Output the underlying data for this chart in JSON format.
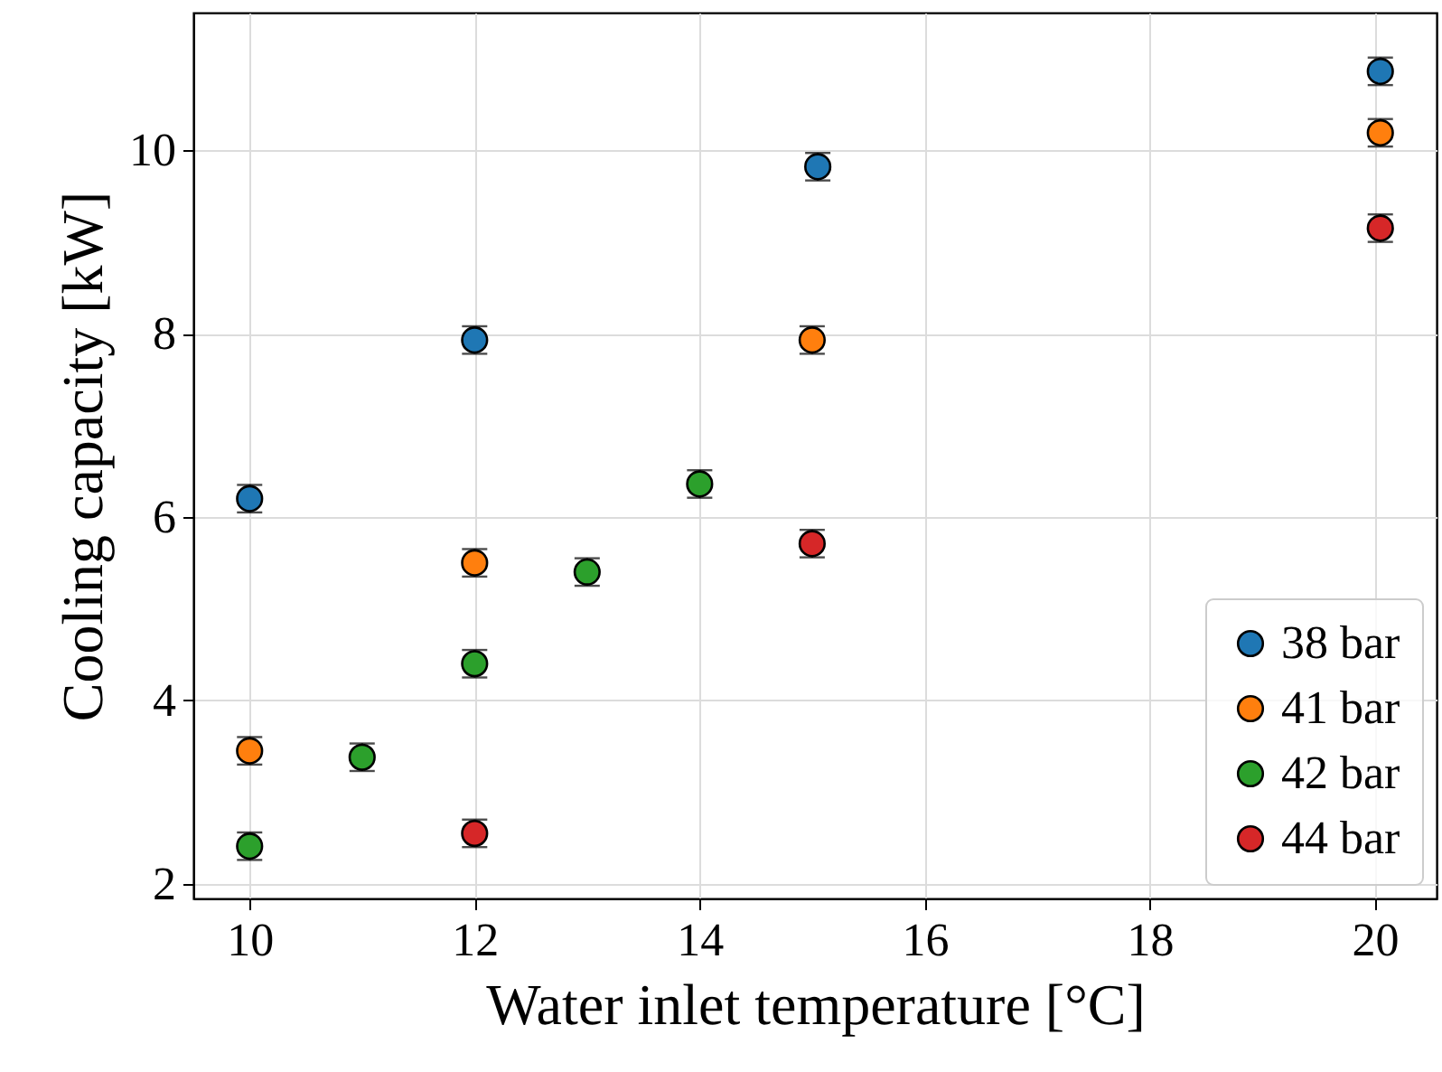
{
  "chart_data": {
    "type": "scatter",
    "xlabel": "Water inlet temperature [°C]",
    "ylabel": "Cooling capacity [kW]",
    "xlim": [
      9.5,
      20.55
    ],
    "ylim": [
      1.84,
      11.5
    ],
    "xticks": [
      10,
      12,
      14,
      16,
      18,
      20
    ],
    "yticks": [
      2,
      4,
      6,
      8,
      10
    ],
    "grid": true,
    "legend": "bottom right",
    "marker": "circle",
    "series": [
      {
        "name": "38 bar",
        "color": "#1f77b4",
        "x": [
          10,
          12,
          15.05,
          20.05
        ],
        "values": [
          6.2,
          7.93,
          9.82,
          10.86
        ],
        "errors": [
          0.15,
          0.15,
          0.15,
          0.15
        ]
      },
      {
        "name": "41 bar",
        "color": "#ff7f0e",
        "x": [
          10,
          12,
          15,
          20.05
        ],
        "values": [
          3.45,
          5.5,
          7.93,
          10.19
        ],
        "errors": [
          0.15,
          0.15,
          0.15,
          0.15
        ]
      },
      {
        "name": "42 bar",
        "color": "#2ca02c",
        "x": [
          10,
          11,
          12,
          13,
          14
        ],
        "values": [
          2.41,
          3.38,
          4.4,
          5.4,
          6.36
        ],
        "errors": [
          0.15,
          0.15,
          0.15,
          0.15,
          0.15
        ]
      },
      {
        "name": "44 bar",
        "color": "#d62728",
        "x": [
          12,
          15,
          20.05
        ],
        "values": [
          2.55,
          5.71,
          9.15
        ],
        "errors": [
          0.15,
          0.15,
          0.15
        ]
      }
    ]
  }
}
